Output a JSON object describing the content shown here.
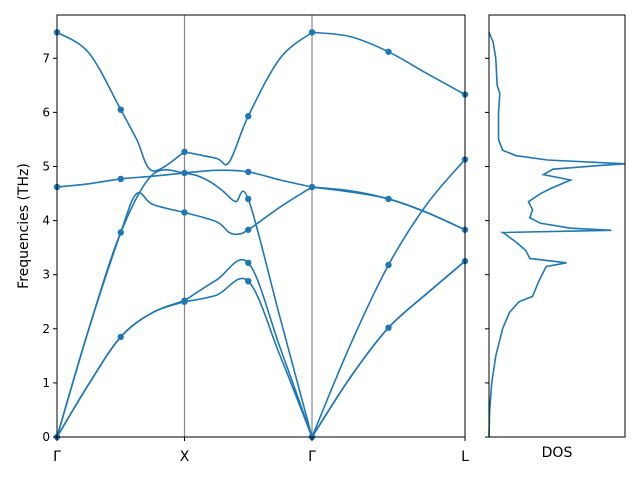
{
  "chart_data": [
    {
      "type": "line",
      "title": "",
      "ylabel": "Frequencies (THz)",
      "xlabel": "",
      "ylim": [
        0,
        7.8
      ],
      "y_ticks": [
        0,
        1,
        2,
        3,
        4,
        5,
        6,
        7
      ],
      "x_range": [
        0,
        3.2
      ],
      "high_symmetry_points": [
        {
          "label": "Γ",
          "x": 0.0
        },
        {
          "label": "X",
          "x": 1.0
        },
        {
          "label": "Γ",
          "x": 2.0
        },
        {
          "label": "L",
          "x": 3.2
        }
      ],
      "grid": false,
      "line_color": "#1f77b4",
      "vline_color": "#888888",
      "series": [
        {
          "x": [
            0,
            0.25,
            0.5,
            0.75,
            1.0,
            1.25,
            1.5,
            1.75,
            2.0,
            2.3,
            2.6,
            2.9,
            3.2
          ],
          "values": [
            0,
            0.98,
            1.85,
            2.3,
            2.5,
            2.62,
            2.88,
            1.5,
            0,
            1.1,
            2.02,
            2.65,
            3.25
          ]
        },
        {
          "x": [
            0,
            0.25,
            0.5,
            0.75,
            1.0,
            1.25,
            1.5,
            1.75,
            2.0,
            2.3,
            2.6,
            2.9,
            3.2
          ],
          "values": [
            0,
            0.98,
            1.85,
            2.3,
            2.52,
            2.9,
            3.22,
            1.65,
            0,
            1.1,
            2.02,
            2.65,
            3.25
          ]
        },
        {
          "x": [
            0,
            0.25,
            0.5,
            0.75,
            1.0,
            1.1,
            1.2,
            1.3,
            1.4,
            1.5,
            1.75,
            2.0,
            2.3,
            2.6,
            2.9,
            3.2
          ],
          "values": [
            0,
            2.0,
            3.78,
            4.85,
            4.88,
            4.83,
            4.72,
            4.55,
            4.35,
            4.4,
            2.2,
            0,
            1.7,
            3.18,
            4.3,
            5.13
          ]
        },
        {
          "x": [
            0,
            0.25,
            0.5,
            0.625,
            0.75,
            1.0,
            1.25,
            1.35,
            1.42,
            1.5,
            1.75,
            2.0,
            2.3,
            2.6,
            2.9,
            3.2
          ],
          "values": [
            0,
            2.0,
            3.78,
            4.5,
            4.3,
            4.15,
            3.98,
            3.78,
            3.75,
            3.83,
            4.25,
            4.62,
            4.55,
            4.4,
            4.15,
            3.83
          ]
        },
        {
          "x": [
            0,
            0.25,
            0.5,
            0.75,
            1.0,
            1.25,
            1.5,
            1.75,
            2.0,
            2.3,
            2.6,
            2.9,
            3.2
          ],
          "values": [
            4.62,
            4.68,
            4.77,
            4.82,
            4.88,
            4.93,
            4.9,
            4.75,
            4.62,
            4.53,
            4.4,
            4.15,
            3.83
          ]
        },
        {
          "x": [
            0,
            0.25,
            0.5,
            0.625,
            0.75,
            1.0,
            1.25,
            1.35,
            1.5,
            1.75,
            2.0,
            2.3,
            2.6,
            2.9,
            3.2
          ],
          "values": [
            7.48,
            7.1,
            6.05,
            5.5,
            4.92,
            5.27,
            5.15,
            5.08,
            5.93,
            7.0,
            7.48,
            7.4,
            7.12,
            6.72,
            6.33
          ]
        }
      ],
      "markers": [
        {
          "x": 0.0,
          "y": 0
        },
        {
          "x": 0.0,
          "y": 4.62
        },
        {
          "x": 0.0,
          "y": 7.48
        },
        {
          "x": 0.5,
          "y": 1.85
        },
        {
          "x": 0.5,
          "y": 3.78
        },
        {
          "x": 0.5,
          "y": 4.77
        },
        {
          "x": 0.5,
          "y": 6.05
        },
        {
          "x": 1.0,
          "y": 2.5
        },
        {
          "x": 1.0,
          "y": 2.52
        },
        {
          "x": 1.0,
          "y": 4.15
        },
        {
          "x": 1.0,
          "y": 4.88
        },
        {
          "x": 1.0,
          "y": 5.27
        },
        {
          "x": 1.5,
          "y": 2.88
        },
        {
          "x": 1.5,
          "y": 3.22
        },
        {
          "x": 1.5,
          "y": 3.83
        },
        {
          "x": 1.5,
          "y": 4.4
        },
        {
          "x": 1.5,
          "y": 4.9
        },
        {
          "x": 1.5,
          "y": 5.93
        },
        {
          "x": 2.0,
          "y": 0
        },
        {
          "x": 2.0,
          "y": 4.62
        },
        {
          "x": 2.0,
          "y": 7.48
        },
        {
          "x": 2.6,
          "y": 2.02
        },
        {
          "x": 2.6,
          "y": 3.18
        },
        {
          "x": 2.6,
          "y": 4.4
        },
        {
          "x": 2.6,
          "y": 7.12
        },
        {
          "x": 3.2,
          "y": 3.25
        },
        {
          "x": 3.2,
          "y": 3.83
        },
        {
          "x": 3.2,
          "y": 5.13
        },
        {
          "x": 3.2,
          "y": 6.33
        }
      ]
    },
    {
      "type": "line",
      "title": "",
      "xlabel": "DOS",
      "ylabel": "",
      "ylim": [
        0,
        7.8
      ],
      "xlim": [
        0,
        1.0
      ],
      "orientation": "vertical",
      "line_color": "#1f77b4",
      "dos": [
        {
          "f": 0.0,
          "d": 0.0
        },
        {
          "f": 0.5,
          "d": 0.005
        },
        {
          "f": 1.0,
          "d": 0.02
        },
        {
          "f": 1.5,
          "d": 0.05
        },
        {
          "f": 2.0,
          "d": 0.1
        },
        {
          "f": 2.3,
          "d": 0.15
        },
        {
          "f": 2.5,
          "d": 0.22
        },
        {
          "f": 2.6,
          "d": 0.32
        },
        {
          "f": 2.9,
          "d": 0.37
        },
        {
          "f": 3.15,
          "d": 0.42
        },
        {
          "f": 3.22,
          "d": 0.57
        },
        {
          "f": 3.3,
          "d": 0.3
        },
        {
          "f": 3.45,
          "d": 0.27
        },
        {
          "f": 3.6,
          "d": 0.2
        },
        {
          "f": 3.75,
          "d": 0.12
        },
        {
          "f": 3.78,
          "d": 0.1
        },
        {
          "f": 3.82,
          "d": 0.9
        },
        {
          "f": 3.86,
          "d": 0.6
        },
        {
          "f": 3.95,
          "d": 0.38
        },
        {
          "f": 4.05,
          "d": 0.3
        },
        {
          "f": 4.2,
          "d": 0.32
        },
        {
          "f": 4.35,
          "d": 0.29
        },
        {
          "f": 4.5,
          "d": 0.38
        },
        {
          "f": 4.6,
          "d": 0.46
        },
        {
          "f": 4.75,
          "d": 0.6
        },
        {
          "f": 4.85,
          "d": 0.4
        },
        {
          "f": 4.95,
          "d": 0.47
        },
        {
          "f": 5.02,
          "d": 0.82
        },
        {
          "f": 5.05,
          "d": 1.0
        },
        {
          "f": 5.12,
          "d": 0.43
        },
        {
          "f": 5.2,
          "d": 0.2
        },
        {
          "f": 5.3,
          "d": 0.1
        },
        {
          "f": 5.5,
          "d": 0.07
        },
        {
          "f": 6.0,
          "d": 0.07
        },
        {
          "f": 6.35,
          "d": 0.08
        },
        {
          "f": 6.5,
          "d": 0.06
        },
        {
          "f": 7.0,
          "d": 0.05
        },
        {
          "f": 7.3,
          "d": 0.03
        },
        {
          "f": 7.48,
          "d": 0.0
        }
      ]
    }
  ]
}
